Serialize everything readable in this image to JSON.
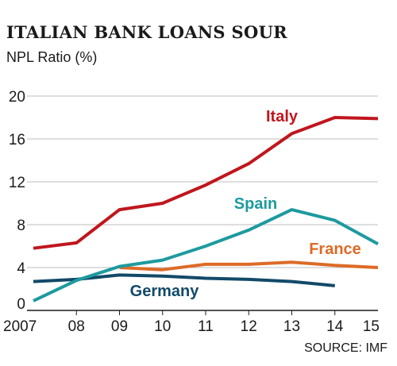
{
  "chart_data": {
    "type": "line",
    "title": "ITALIAN BANK LOANS SOUR",
    "subtitle": "NPL Ratio (%)",
    "source": "SOURCE: IMF",
    "xlabel": "",
    "ylabel": "",
    "x": [
      2007,
      2008,
      2009,
      2010,
      2011,
      2012,
      2013,
      2014,
      2015
    ],
    "x_tick_labels": [
      "2007",
      "08",
      "09",
      "10",
      "11",
      "12",
      "13",
      "14",
      "15"
    ],
    "y_ticks": [
      0,
      4,
      8,
      12,
      16,
      20
    ],
    "y_tick_labels": [
      "0",
      "4",
      "8",
      "12",
      "16",
      "20"
    ],
    "xlim": [
      2007,
      2015
    ],
    "ylim": [
      0,
      20
    ],
    "grid": "horizontal",
    "legend": "inline labels",
    "series": [
      {
        "name": "Italy",
        "color": "#c0161d",
        "x": [
          2007,
          2008,
          2009,
          2010,
          2011,
          2012,
          2013,
          2014,
          2015
        ],
        "values": [
          5.8,
          6.3,
          9.4,
          10.0,
          11.7,
          13.7,
          16.5,
          18.0,
          17.9
        ]
      },
      {
        "name": "Spain",
        "color": "#1d9a9f",
        "x": [
          2007,
          2008,
          2009,
          2010,
          2011,
          2012,
          2013,
          2014,
          2015
        ],
        "values": [
          0.9,
          2.8,
          4.1,
          4.7,
          6.0,
          7.5,
          9.4,
          8.4,
          6.2
        ]
      },
      {
        "name": "France",
        "color": "#dd6b26",
        "x": [
          2009,
          2010,
          2011,
          2012,
          2013,
          2014,
          2015
        ],
        "values": [
          4.0,
          3.8,
          4.3,
          4.3,
          4.5,
          4.2,
          4.0
        ]
      },
      {
        "name": "Germany",
        "color": "#124a68",
        "x": [
          2007,
          2008,
          2009,
          2010,
          2011,
          2012,
          2013,
          2014
        ],
        "values": [
          2.7,
          2.9,
          3.3,
          3.2,
          3.0,
          2.9,
          2.7,
          2.3
        ]
      }
    ]
  }
}
